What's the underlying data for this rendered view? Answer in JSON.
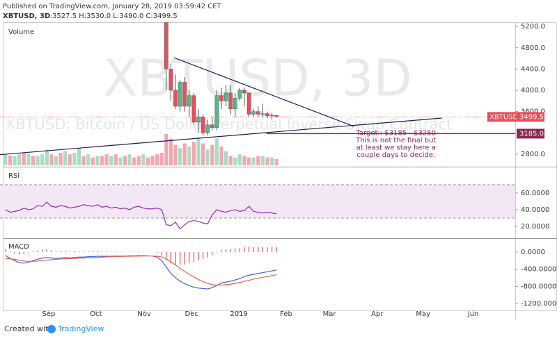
{
  "header": {
    "published": "Published on TradingView.com, January 28, 2019 03:59:42 CET",
    "symbol": "XBTUSD, 3D",
    "ohlc": "O:3527.5 H:3530.0 L:3490.0 C:3499.5"
  },
  "footer": {
    "created": "Created with",
    "brand": "TradingView"
  },
  "chart_data": [
    {
      "type": "candlestick",
      "watermark": "XBTUSD, 3D",
      "description": "XBTUSD: Bitcoin / US Dollar Perpetual Inverse Swap Contract",
      "xlim": [
        -1.2,
        110.2
      ],
      "ylim": [
        2590,
        5280
      ],
      "yticks": [
        {
          "value": 2800,
          "label": "2800.0"
        },
        {
          "value": 3600,
          "label": "3600.0"
        },
        {
          "value": 4000,
          "label": "4000.0"
        },
        {
          "value": 4400,
          "label": "4400.0"
        },
        {
          "value": 4800,
          "label": "4800.0"
        },
        {
          "value": 5200,
          "label": "5200.0"
        }
      ],
      "up_color": "#53b987",
      "down_color": "#eb4d5c",
      "candles": {
        "x": [
          35,
          36,
          37,
          38,
          39,
          40,
          41,
          42,
          43,
          44,
          45,
          46,
          47,
          48,
          49,
          50,
          51,
          52,
          53,
          54,
          55,
          56,
          57,
          58,
          59
        ],
        "open": [
          5600,
          4400,
          4000,
          3700,
          4150,
          3700,
          3900,
          3400,
          3500,
          3200,
          3350,
          3300,
          3900,
          3800,
          3950,
          3650,
          3850,
          4000,
          3950,
          3550,
          3600,
          3550,
          3560,
          3520,
          3527.5
        ],
        "high": [
          5650,
          4500,
          4300,
          4200,
          4250,
          4000,
          3950,
          3650,
          3550,
          3450,
          3500,
          4000,
          4050,
          4100,
          4100,
          3950,
          4050,
          4050,
          3950,
          3650,
          3700,
          3750,
          3600,
          3580,
          3530
        ],
        "low": [
          4000,
          3800,
          3650,
          3600,
          3600,
          3500,
          3350,
          3200,
          3150,
          3150,
          3250,
          3250,
          3650,
          3700,
          3550,
          3500,
          3800,
          3700,
          3500,
          3500,
          3500,
          3500,
          3480,
          3450,
          3490
        ],
        "close": [
          4400,
          4000,
          3700,
          4150,
          3700,
          3900,
          3400,
          3500,
          3200,
          3350,
          3300,
          3900,
          3800,
          3950,
          3650,
          3850,
          4000,
          3950,
          3550,
          3600,
          3550,
          3560,
          3520,
          3530,
          3499.5
        ]
      },
      "volume": {
        "name": "Volume",
        "x": [
          0,
          1,
          2,
          3,
          4,
          5,
          6,
          7,
          8,
          9,
          10,
          11,
          12,
          13,
          14,
          15,
          16,
          17,
          18,
          19,
          20,
          21,
          22,
          23,
          24,
          25,
          26,
          27,
          28,
          29,
          30,
          31,
          32,
          33,
          34,
          35,
          36,
          37,
          38,
          39,
          40,
          41,
          42,
          43,
          44,
          45,
          46,
          47,
          48,
          49,
          50,
          51,
          52,
          53,
          54,
          55,
          56,
          57,
          58,
          59
        ],
        "values": [
          14,
          12,
          12,
          14,
          16,
          15,
          12,
          12,
          14,
          20,
          14,
          12,
          16,
          18,
          14,
          16,
          22,
          12,
          14,
          10,
          12,
          12,
          14,
          12,
          14,
          10,
          12,
          14,
          10,
          12,
          14,
          10,
          12,
          14,
          16,
          40,
          34,
          26,
          22,
          28,
          24,
          30,
          36,
          28,
          20,
          26,
          34,
          24,
          18,
          12,
          10,
          14,
          12,
          10,
          10,
          12,
          12,
          10,
          10,
          8
        ],
        "colors": [
          "#a9dcc3",
          "#f5a6ae",
          "#a9dcc3",
          "#a9dcc3",
          "#f5a6ae",
          "#a9dcc3",
          "#f5a6ae",
          "#a9dcc3",
          "#a9dcc3",
          "#a9dcc3",
          "#f5a6ae",
          "#a9dcc3",
          "#f5a6ae",
          "#a9dcc3",
          "#f5a6ae",
          "#a9dcc3",
          "#a9dcc3",
          "#f5a6ae",
          "#a9dcc3",
          "#f5a6ae",
          "#a9dcc3",
          "#f5a6ae",
          "#f5a6ae",
          "#a9dcc3",
          "#f5a6ae",
          "#a9dcc3",
          "#f5a6ae",
          "#a9dcc3",
          "#f5a6ae",
          "#f5a6ae",
          "#a9dcc3",
          "#f5a6ae",
          "#f5a6ae",
          "#f5a6ae",
          "#f5a6ae",
          "#f5a6ae",
          "#f5a6ae",
          "#f5a6ae",
          "#a9dcc3",
          "#f5a6ae",
          "#a9dcc3",
          "#f5a6ae",
          "#a9dcc3",
          "#f5a6ae",
          "#a9dcc3",
          "#f5a6ae",
          "#a9dcc3",
          "#f5a6ae",
          "#a9dcc3",
          "#f5a6ae",
          "#a9dcc3",
          "#a9dcc3",
          "#f5a6ae",
          "#f5a6ae",
          "#a9dcc3",
          "#f5a6ae",
          "#a9dcc3",
          "#f5a6ae",
          "#a9dcc3",
          "#f5a6ae"
        ]
      },
      "trendlines": [
        {
          "x": [
            36.7,
            75.8
          ],
          "y": [
            4613,
            3322
          ],
          "color": "#1c1c5a"
        },
        {
          "x": [
            -1.2,
            95
          ],
          "y": [
            2790,
            3478
          ],
          "color": "#1c1c5a"
        }
      ],
      "last_price": {
        "symbol": "XBTUSD",
        "value": 3499.5,
        "label": "3499.5",
        "color": "#eb4d5c"
      },
      "level": {
        "x": 56.8,
        "value": 3185,
        "label": "3185.0",
        "color": "#8b2752"
      },
      "annotation": {
        "x": 85,
        "y": 2920,
        "lines": [
          "Target:: $3185 - $3250",
          "This is not the final but",
          "at least we stay here a",
          "couple days to decide."
        ],
        "color": "#8b2752"
      }
    },
    {
      "type": "line",
      "name": "RSI",
      "xlim": [
        -1.2,
        110.2
      ],
      "ylim": [
        6.7,
        89
      ],
      "yticks": [
        {
          "value": 20,
          "label": "20.0000"
        },
        {
          "value": 40,
          "label": "40.0000"
        },
        {
          "value": 60,
          "label": "60.0000"
        }
      ],
      "band": [
        30,
        70
      ],
      "band_color": "#f3e6f5",
      "series": [
        {
          "color": "#8e2eb8",
          "x": [
            0,
            1,
            2,
            3,
            4,
            5,
            6,
            7,
            8,
            9,
            10,
            11,
            12,
            13,
            14,
            15,
            16,
            17,
            18,
            19,
            20,
            21,
            22,
            23,
            24,
            25,
            26,
            27,
            28,
            29,
            30,
            31,
            32,
            33,
            34,
            35,
            36,
            37,
            38,
            39,
            40,
            41,
            42,
            43,
            44,
            45,
            46,
            47,
            48,
            49,
            50,
            51,
            52,
            53,
            54,
            55,
            56,
            57,
            58,
            59
          ],
          "values": [
            40,
            37,
            38,
            39,
            42,
            40,
            41,
            45,
            44,
            49,
            44,
            43,
            45,
            44,
            42,
            43,
            44,
            46,
            45,
            44,
            46,
            43,
            44,
            42,
            43,
            41,
            42,
            40,
            43,
            44,
            42,
            41,
            41,
            42,
            40,
            22,
            21,
            25,
            17,
            22,
            26,
            27,
            26,
            24,
            23,
            34,
            40,
            38,
            37,
            39,
            40,
            38,
            39,
            44,
            38,
            37,
            36,
            37,
            36,
            35
          ]
        }
      ]
    },
    {
      "type": "combo",
      "name": "MACD",
      "xlim": [
        -1.2,
        110.2
      ],
      "ylim": [
        -1344,
        272
      ],
      "yticks": [
        {
          "value": -1200,
          "label": "-1200.0000"
        },
        {
          "value": -800,
          "label": "-800.0000"
        },
        {
          "value": -400,
          "label": "-400.0000"
        },
        {
          "value": 0,
          "label": "0.0000"
        }
      ],
      "xticks": [
        {
          "value": 9.4,
          "label": "Sep"
        },
        {
          "value": 19.7,
          "label": "Oct"
        },
        {
          "value": 30.2,
          "label": "Nov"
        },
        {
          "value": 40.5,
          "label": "Dec"
        },
        {
          "value": 50.8,
          "label": "2019"
        },
        {
          "value": 61.1,
          "label": "Feb"
        },
        {
          "value": 70.5,
          "label": "Mar"
        },
        {
          "value": 80.9,
          "label": "Apr"
        },
        {
          "value": 90.9,
          "label": "May"
        },
        {
          "value": 101.8,
          "label": "Jun"
        }
      ],
      "x": [
        0,
        1,
        2,
        3,
        4,
        5,
        6,
        7,
        8,
        9,
        10,
        11,
        12,
        13,
        14,
        15,
        16,
        17,
        18,
        19,
        20,
        21,
        22,
        23,
        24,
        25,
        26,
        27,
        28,
        29,
        30,
        31,
        32,
        33,
        34,
        35,
        36,
        37,
        38,
        39,
        40,
        41,
        42,
        43,
        44,
        45,
        46,
        47,
        48,
        49,
        50,
        51,
        52,
        53,
        54,
        55,
        56,
        57,
        58,
        59
      ],
      "histogram": {
        "color": "#eb4d5c",
        "values": [
          70,
          10,
          -30,
          -60,
          -50,
          -20,
          20,
          40,
          60,
          60,
          40,
          20,
          25,
          30,
          15,
          20,
          25,
          20,
          25,
          20,
          25,
          20,
          15,
          10,
          12,
          9,
          7,
          10,
          8,
          11,
          9,
          3,
          -2,
          -22,
          -82,
          -190,
          -270,
          -300,
          -300,
          -290,
          -260,
          -240,
          -200,
          -160,
          -130,
          -70,
          -10,
          50,
          60,
          70,
          80,
          90,
          110,
          120,
          110,
          110,
          110,
          110,
          110,
          110
        ]
      },
      "series": [
        {
          "color": "#3f5fdc",
          "values": [
            -80,
            -150,
            -200,
            -250,
            -260,
            -240,
            -200,
            -170,
            -140,
            -130,
            -140,
            -150,
            -140,
            -130,
            -140,
            -130,
            -120,
            -120,
            -110,
            -110,
            -100,
            -100,
            -100,
            -100,
            -95,
            -95,
            -95,
            -90,
            -90,
            -85,
            -85,
            -90,
            -95,
            -120,
            -200,
            -350,
            -500,
            -600,
            -680,
            -740,
            -780,
            -820,
            -840,
            -850,
            -860,
            -830,
            -780,
            -720,
            -700,
            -680,
            -650,
            -620,
            -570,
            -540,
            -520,
            -500,
            -480,
            -460,
            -440,
            -420
          ]
        },
        {
          "color": "#f0604d",
          "values": [
            -150,
            -160,
            -170,
            -190,
            -210,
            -220,
            -220,
            -210,
            -200,
            -190,
            -180,
            -170,
            -165,
            -160,
            -155,
            -150,
            -145,
            -140,
            -135,
            -130,
            -125,
            -120,
            -115,
            -110,
            -107,
            -104,
            -102,
            -100,
            -98,
            -96,
            -94,
            -93,
            -93,
            -98,
            -118,
            -160,
            -230,
            -300,
            -380,
            -450,
            -520,
            -580,
            -640,
            -690,
            -730,
            -760,
            -770,
            -770,
            -760,
            -750,
            -730,
            -710,
            -680,
            -660,
            -630,
            -610,
            -590,
            -570,
            -550,
            -530
          ]
        }
      ]
    }
  ]
}
